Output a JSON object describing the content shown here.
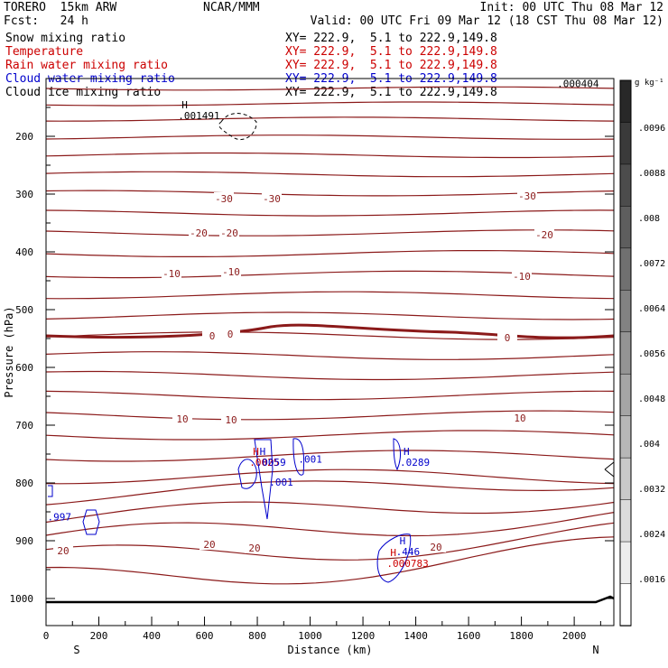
{
  "header": {
    "model": "TORERO  15km ARW",
    "center": "NCAR/MMM",
    "init": "Init: 00 UTC Thu 08 Mar 12",
    "fcst": "Fcst:   24 h",
    "valid": "Valid: 00 UTC Fri 09 Mar 12 (18 CST Thu 08 Mar 12)"
  },
  "legend": [
    {
      "name": "Snow mixing ratio",
      "color": "#000000",
      "xy": "XY= 222.9,  5.1 to 222.9,149.8"
    },
    {
      "name": "Temperature",
      "color": "#cc0000",
      "xy": "XY= 222.9,  5.1 to 222.9,149.8"
    },
    {
      "name": "Rain water mixing ratio",
      "color": "#cc0000",
      "xy": "XY= 222.9,  5.1 to 222.9,149.8"
    },
    {
      "name": "Cloud water mixing ratio",
      "color": "#0000cc",
      "xy": "XY= 222.9,  5.1 to 222.9,149.8"
    },
    {
      "name": "Cloud ice mixing ratio",
      "color": "#000000",
      "xy": "XY= 222.9,  5.1 to 222.9,149.8"
    }
  ],
  "chart_data": {
    "type": "line",
    "xlabel": "Distance (km)",
    "ylabel": "Pressure (hPa)",
    "xlim": [
      0,
      2150
    ],
    "ylim": [
      1050,
      80
    ],
    "x_ticks": [
      "0",
      "200",
      "400",
      "600",
      "800",
      "1000",
      "1200",
      "1400",
      "1600",
      "1800",
      "2000"
    ],
    "y_ticks": [
      "200",
      "300",
      "400",
      "500",
      "600",
      "700",
      "800",
      "900",
      "1000"
    ],
    "endpoint_left": "S",
    "endpoint_right": "N",
    "colorbar": {
      "units": "g kg⁻¹",
      "labels": [
        ".0096",
        ".0088",
        ".008",
        ".0072",
        ".0064",
        ".0056",
        ".0048",
        ".004",
        ".0032",
        ".0024",
        ".0016"
      ]
    },
    "isotherm_labels": [
      "-30",
      "-30",
      "-30",
      "-20",
      "-20",
      "-20",
      "-10",
      "-10",
      "-10",
      "0",
      "0",
      "0",
      "10",
      "10",
      "10",
      "20",
      "20",
      "20",
      "20"
    ],
    "max_labels": [
      {
        "mark": "H",
        "value": ".001491",
        "x": 500,
        "p": 170,
        "color": "#000000"
      },
      {
        "mark": "",
        "value": ".000404",
        "x": 1935,
        "p": 115,
        "color": "#000000"
      },
      {
        "mark": "H",
        "value": ".0025",
        "x": 770,
        "p": 770,
        "color": "#cc0000"
      },
      {
        "mark": "H",
        "value": ".0059",
        "x": 795,
        "p": 770,
        "color": "#0000cc"
      },
      {
        "mark": "",
        "value": ".001",
        "x": 955,
        "p": 765,
        "color": "#0000cc"
      },
      {
        "mark": "",
        "value": ".001",
        "x": 845,
        "p": 805,
        "color": "#0000cc"
      },
      {
        "mark": "H",
        "value": ".0289",
        "x": 1340,
        "p": 770,
        "color": "#0000cc"
      },
      {
        "mark": "",
        "value": ".997",
        "x": 5,
        "p": 865,
        "color": "#0000cc"
      },
      {
        "mark": "H",
        "value": ".446",
        "x": 1325,
        "p": 925,
        "color": "#0000cc"
      },
      {
        "mark": "H",
        "value": ".000783",
        "x": 1290,
        "p": 945,
        "color": "#cc0000"
      }
    ]
  }
}
